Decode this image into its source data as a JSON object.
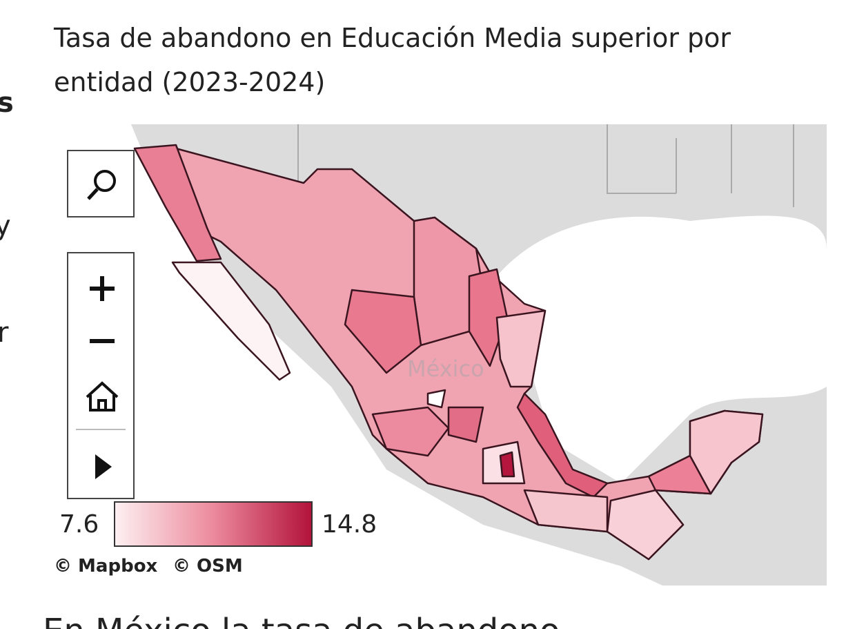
{
  "title": "Tasa de abandono en Educación Media superior por entidad (2023-2024)",
  "side_fragments": [
    "s",
    "y",
    "r"
  ],
  "map": {
    "place_label": "México",
    "legend": {
      "min_label": "7.6",
      "max_label": "14.8"
    },
    "attribution": [
      "© Mapbox",
      "© OSM"
    ]
  },
  "footer_text": "En México la tasa de abandono"
}
